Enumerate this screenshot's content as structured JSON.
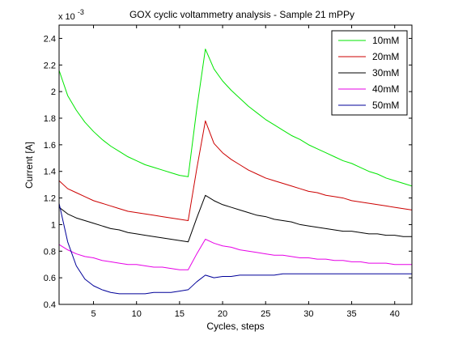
{
  "chart_data": {
    "type": "line",
    "title": "GOX cyclic voltammetry analysis - Sample 21 mPPy",
    "xlabel": "Cycles, steps",
    "ylabel": "Current [A]",
    "y_multiplier_base": "x 10",
    "y_multiplier_exponent": "-3",
    "xlim": [
      1,
      42
    ],
    "ylim": [
      0.4,
      2.5
    ],
    "y_scale_note": "values shown in units of 1e-3 A",
    "xticks": [
      5,
      10,
      15,
      20,
      25,
      30,
      35,
      40
    ],
    "xtick_labels": [
      "5",
      "10",
      "15",
      "20",
      "25",
      "30",
      "35",
      "40"
    ],
    "yticks": [
      0.4,
      0.6,
      0.8,
      1.0,
      1.2,
      1.4,
      1.6,
      1.8,
      2.0,
      2.2,
      2.4
    ],
    "ytick_labels": [
      "0.4",
      "0.6",
      "0.8",
      "1",
      "1.2",
      "1.4",
      "1.6",
      "1.8",
      "2",
      "2.2",
      "2.4"
    ],
    "grid": false,
    "legend_position": "top-right",
    "x": [
      1,
      2,
      3,
      4,
      5,
      6,
      7,
      8,
      9,
      10,
      11,
      12,
      13,
      14,
      15,
      16,
      17,
      18,
      19,
      20,
      21,
      22,
      23,
      24,
      25,
      26,
      27,
      28,
      29,
      30,
      31,
      32,
      33,
      34,
      35,
      36,
      37,
      38,
      39,
      40,
      41,
      42
    ],
    "series": [
      {
        "name": "10mM",
        "color": "#00e600",
        "values": [
          2.16,
          1.97,
          1.86,
          1.77,
          1.7,
          1.64,
          1.59,
          1.55,
          1.51,
          1.48,
          1.45,
          1.43,
          1.41,
          1.39,
          1.37,
          1.36,
          1.87,
          2.32,
          2.17,
          2.08,
          2.01,
          1.95,
          1.89,
          1.84,
          1.79,
          1.75,
          1.71,
          1.67,
          1.64,
          1.6,
          1.57,
          1.54,
          1.51,
          1.48,
          1.46,
          1.43,
          1.4,
          1.38,
          1.35,
          1.33,
          1.31,
          1.29
        ]
      },
      {
        "name": "20mM",
        "color": "#cc0000",
        "values": [
          1.33,
          1.27,
          1.24,
          1.21,
          1.18,
          1.16,
          1.14,
          1.12,
          1.1,
          1.09,
          1.08,
          1.07,
          1.06,
          1.05,
          1.04,
          1.03,
          1.42,
          1.78,
          1.61,
          1.54,
          1.49,
          1.45,
          1.41,
          1.38,
          1.35,
          1.33,
          1.31,
          1.29,
          1.27,
          1.25,
          1.24,
          1.22,
          1.21,
          1.2,
          1.18,
          1.17,
          1.16,
          1.15,
          1.14,
          1.13,
          1.12,
          1.11
        ]
      },
      {
        "name": "30mM",
        "color": "#000000",
        "values": [
          1.13,
          1.08,
          1.05,
          1.03,
          1.01,
          0.99,
          0.97,
          0.96,
          0.94,
          0.93,
          0.92,
          0.91,
          0.9,
          0.89,
          0.88,
          0.87,
          1.05,
          1.22,
          1.18,
          1.15,
          1.13,
          1.11,
          1.09,
          1.07,
          1.06,
          1.04,
          1.03,
          1.02,
          1.0,
          0.99,
          0.98,
          0.97,
          0.96,
          0.95,
          0.95,
          0.94,
          0.93,
          0.93,
          0.92,
          0.92,
          0.91,
          0.91
        ]
      },
      {
        "name": "40mM",
        "color": "#e600e6",
        "values": [
          0.85,
          0.81,
          0.78,
          0.76,
          0.75,
          0.73,
          0.72,
          0.71,
          0.7,
          0.7,
          0.69,
          0.68,
          0.68,
          0.67,
          0.66,
          0.66,
          0.78,
          0.89,
          0.86,
          0.84,
          0.83,
          0.81,
          0.8,
          0.79,
          0.78,
          0.77,
          0.77,
          0.76,
          0.75,
          0.75,
          0.74,
          0.74,
          0.73,
          0.73,
          0.72,
          0.72,
          0.71,
          0.71,
          0.71,
          0.7,
          0.7,
          0.7
        ]
      },
      {
        "name": "50mM",
        "color": "#000099",
        "values": [
          1.16,
          0.87,
          0.69,
          0.59,
          0.54,
          0.51,
          0.49,
          0.48,
          0.48,
          0.48,
          0.48,
          0.49,
          0.49,
          0.49,
          0.5,
          0.51,
          0.57,
          0.62,
          0.6,
          0.61,
          0.61,
          0.62,
          0.62,
          0.62,
          0.62,
          0.62,
          0.63,
          0.63,
          0.63,
          0.63,
          0.63,
          0.63,
          0.63,
          0.63,
          0.63,
          0.63,
          0.63,
          0.63,
          0.63,
          0.63,
          0.63,
          0.63
        ]
      }
    ]
  }
}
